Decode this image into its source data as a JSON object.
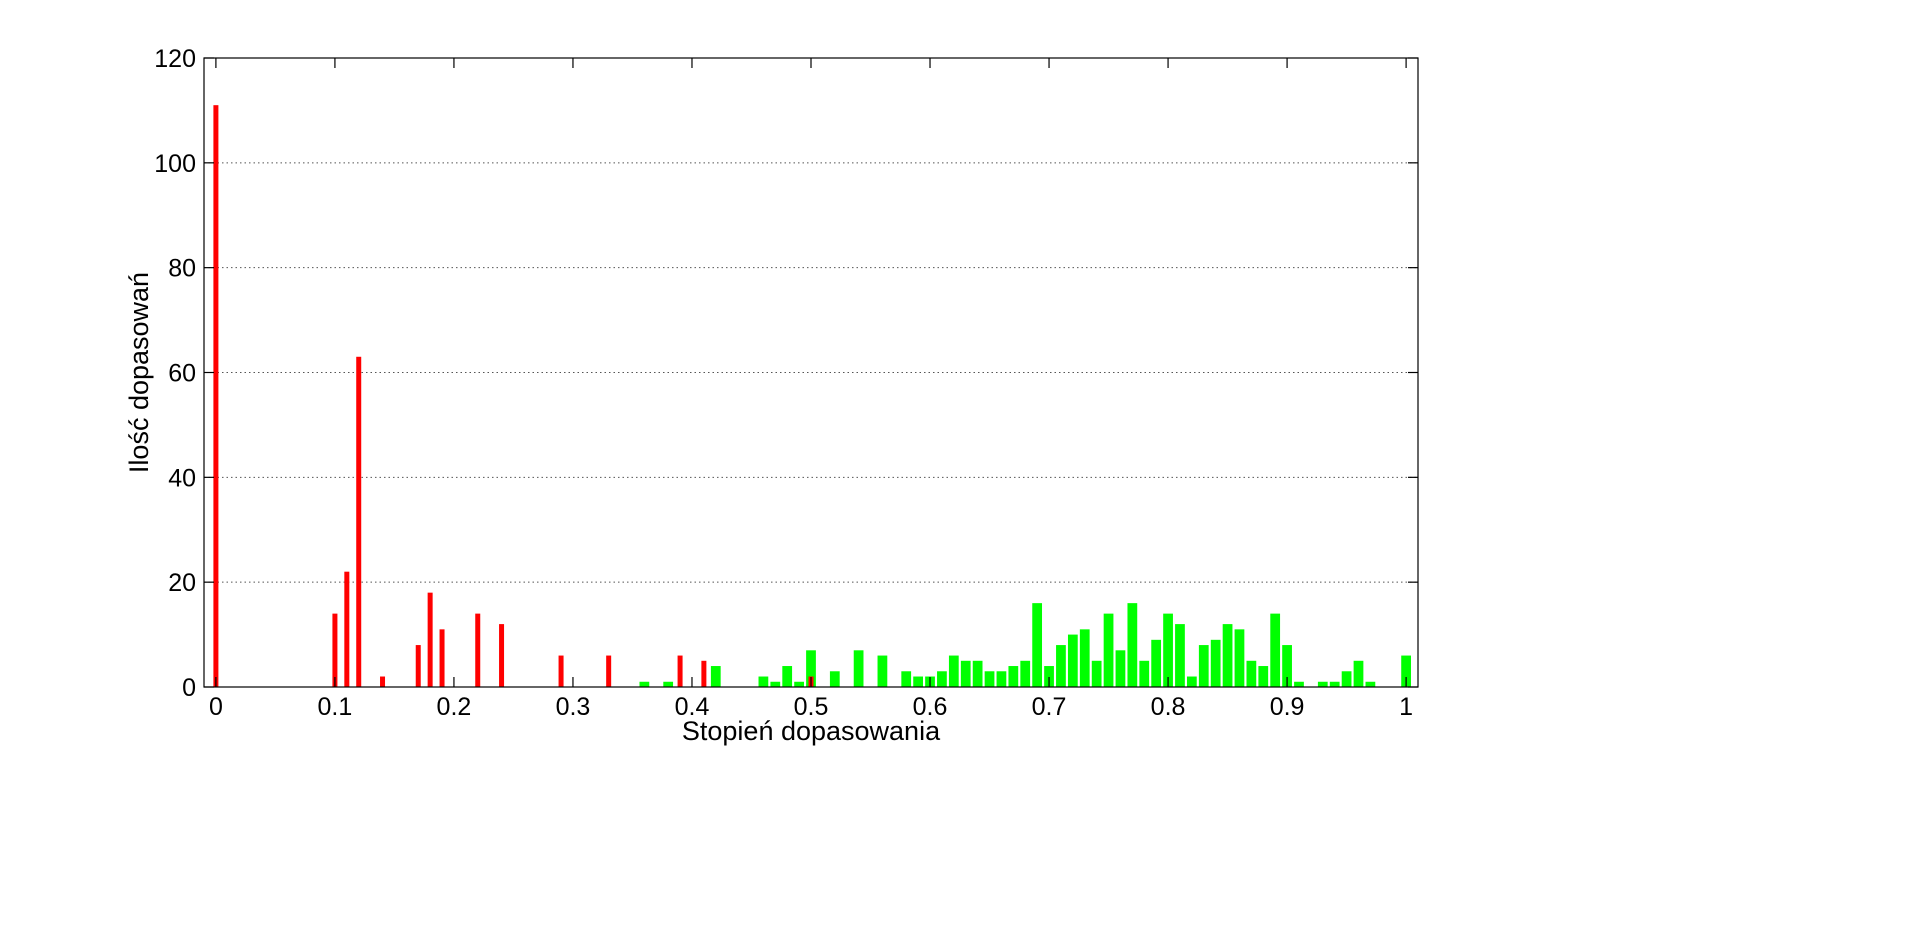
{
  "chart_data": {
    "type": "bar",
    "title": "",
    "xlabel": "Stopień dopasowania",
    "ylabel": "Ilość dopasowań",
    "xlim": [
      -0.01,
      1.01
    ],
    "ylim": [
      0,
      120
    ],
    "xticks": [
      0,
      0.1,
      0.2,
      0.3,
      0.4,
      0.5,
      0.6,
      0.7,
      0.8,
      0.9,
      1
    ],
    "xtick_labels": [
      "0",
      "0.1",
      "0.2",
      "0.3",
      "0.4",
      "0.5",
      "0.6",
      "0.7",
      "0.8",
      "0.9",
      "1"
    ],
    "yticks": [
      0,
      20,
      40,
      60,
      80,
      100,
      120
    ],
    "ytick_labels": [
      "0",
      "20",
      "40",
      "60",
      "80",
      "100",
      "120"
    ],
    "grid": "horizontal dotted",
    "series": [
      {
        "color": "#ff0000",
        "bar_style": "narrow",
        "x": [
          0,
          0.1,
          0.11,
          0.12,
          0.14,
          0.17,
          0.18,
          0.19,
          0.22,
          0.24,
          0.29,
          0.33,
          0.39,
          0.41,
          0.5
        ],
        "values": [
          111,
          14,
          22,
          63,
          2,
          8,
          18,
          11,
          14,
          12,
          6,
          6,
          6,
          5,
          2
        ]
      },
      {
        "color": "#00ff00",
        "bar_style": "wide",
        "x": [
          0.36,
          0.38,
          0.42,
          0.46,
          0.47,
          0.48,
          0.49,
          0.5,
          0.52,
          0.54,
          0.56,
          0.58,
          0.59,
          0.6,
          0.61,
          0.62,
          0.63,
          0.64,
          0.65,
          0.66,
          0.67,
          0.68,
          0.69,
          0.7,
          0.71,
          0.72,
          0.73,
          0.74,
          0.75,
          0.76,
          0.77,
          0.78,
          0.79,
          0.8,
          0.81,
          0.82,
          0.83,
          0.84,
          0.85,
          0.86,
          0.87,
          0.88,
          0.89,
          0.9,
          0.91,
          0.93,
          0.94,
          0.95,
          0.96,
          0.97,
          1
        ],
        "values": [
          1,
          1,
          4,
          2,
          1,
          4,
          1,
          7,
          3,
          7,
          6,
          3,
          2,
          2,
          3,
          6,
          5,
          5,
          3,
          3,
          4,
          5,
          16,
          4,
          8,
          10,
          11,
          5,
          14,
          7,
          16,
          5,
          9,
          14,
          12,
          2,
          8,
          9,
          12,
          11,
          5,
          4,
          14,
          8,
          1,
          1,
          1,
          3,
          5,
          1,
          6
        ]
      }
    ]
  }
}
